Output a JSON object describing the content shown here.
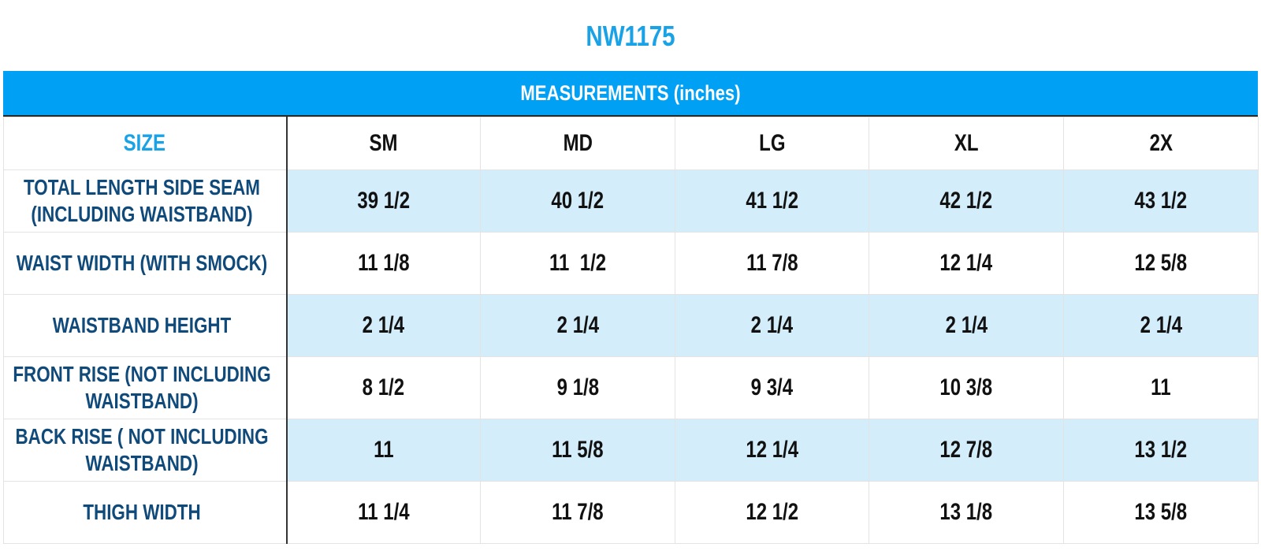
{
  "title": "NW1175",
  "band_label": "MEASUREMENTS (inches)",
  "colors": {
    "title": "#1aa2e6",
    "band": "#00a0f5",
    "row_label": "#0f4a7a",
    "shaded_row": "#d4edfb"
  },
  "table": {
    "size_label": "SIZE",
    "sizes": [
      "SM",
      "MD",
      "LG",
      "XL",
      "2X"
    ],
    "rows": [
      {
        "label": "TOTAL LENGTH SIDE SEAM\n(INCLUDING WAISTBAND)",
        "values": [
          "39 1/2",
          "40 1/2",
          "41 1/2",
          "42 1/2",
          "43 1/2"
        ]
      },
      {
        "label": "WAIST WIDTH (WITH SMOCK)",
        "values": [
          "11 1/8",
          "11  1/2",
          "11 7/8",
          "12 1/4",
          "12 5/8"
        ]
      },
      {
        "label": "WAISTBAND HEIGHT",
        "values": [
          "2 1/4",
          "2 1/4",
          "2 1/4",
          "2 1/4",
          "2 1/4"
        ]
      },
      {
        "label": "FRONT RISE (NOT INCLUDING\nWAISTBAND)",
        "values": [
          "8 1/2",
          "9 1/8",
          "9 3/4",
          "10 3/8",
          "11"
        ]
      },
      {
        "label": "BACK RISE ( NOT INCLUDING\nWAISTBAND)",
        "values": [
          "11",
          "11 5/8",
          "12 1/4",
          "12 7/8",
          "13 1/2"
        ]
      },
      {
        "label": "THIGH WIDTH",
        "values": [
          "11 1/4",
          "11 7/8",
          "12 1/2",
          "13 1/8",
          "13 5/8"
        ]
      }
    ]
  }
}
